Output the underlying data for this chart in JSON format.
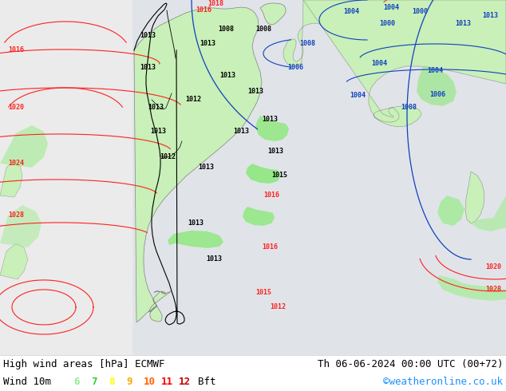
{
  "title_left": "High wind areas [hPa] ECMWF",
  "title_right": "Th 06-06-2024 00:00 UTC (00+72)",
  "legend_label": "Wind 10m",
  "legend_numbers": [
    "6",
    "7",
    "8",
    "9",
    "10",
    "11",
    "12"
  ],
  "legend_colors": [
    "#90ee90",
    "#32cd32",
    "#ffff00",
    "#ffa500",
    "#ff6600",
    "#ff0000",
    "#cc0000"
  ],
  "legend_unit": "Bft",
  "watermark": "©weatheronline.co.uk",
  "watermark_color": "#1e90ff",
  "figsize": [
    6.34,
    4.9
  ],
  "dpi": 100,
  "bottom_bar_color": "#ffffff",
  "text_color": "#000000",
  "map_ocean": "#e8e8e8",
  "map_land_green": "#c8f0c0",
  "map_land_bright": "#a8e898",
  "contour_red": "#ff2020",
  "contour_blue": "#1040c0",
  "contour_black": "#000000",
  "contour_gray": "#808080",
  "legend_fontsize": 9,
  "title_fontsize": 9
}
